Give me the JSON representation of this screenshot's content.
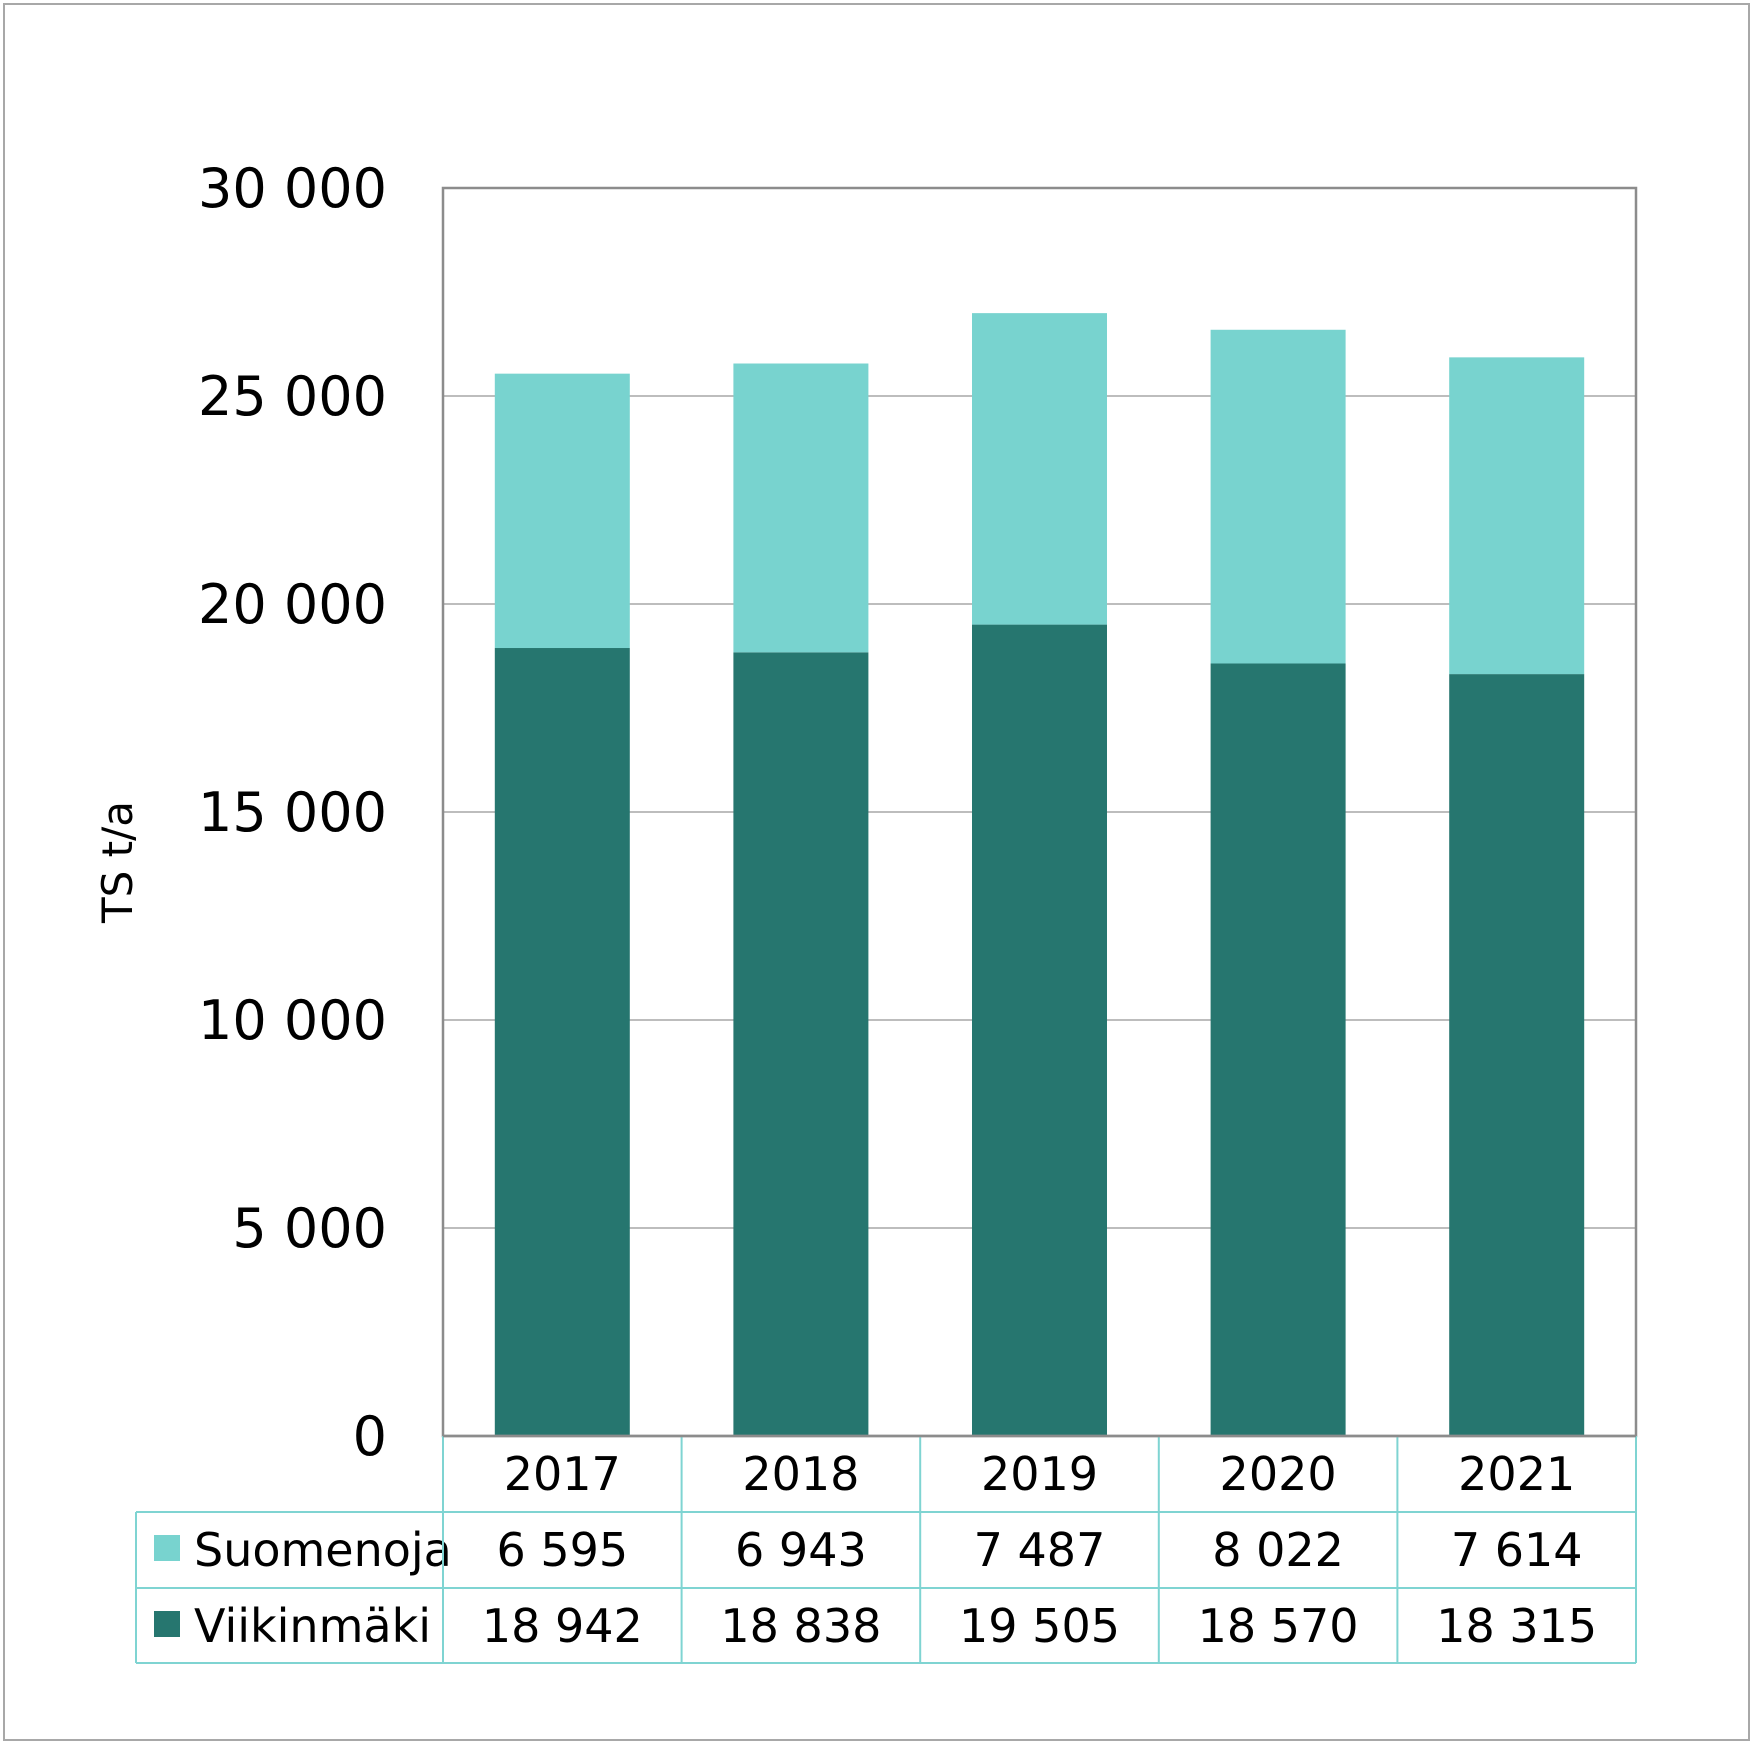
{
  "chart_data": {
    "type": "bar",
    "stacked": true,
    "categories": [
      "2017",
      "2018",
      "2019",
      "2020",
      "2021"
    ],
    "series": [
      {
        "name": "Viikinmäki",
        "values": [
          18942,
          18838,
          19505,
          18570,
          18315
        ],
        "labels": [
          "18 942",
          "18 838",
          "19 505",
          "18 570",
          "18 315"
        ],
        "color": "#26766F"
      },
      {
        "name": "Suomenoja",
        "values": [
          6595,
          6943,
          7487,
          8022,
          7614
        ],
        "labels": [
          "6 595",
          "6 943",
          "7 487",
          "8 022",
          "7 614"
        ],
        "color": "#78D3CF"
      }
    ],
    "ylabel": "TS t/a",
    "ylim": [
      0,
      30000
    ],
    "yticks": [
      0,
      5000,
      10000,
      15000,
      20000,
      25000,
      30000
    ],
    "ytick_labels": [
      "0",
      "5 000",
      "10 000",
      "15 000",
      "20 000",
      "25 000",
      "30 000"
    ],
    "grid": true,
    "legend": "data-table below chart",
    "table_rows_order": [
      "Suomenoja",
      "Viikinmäki"
    ]
  }
}
